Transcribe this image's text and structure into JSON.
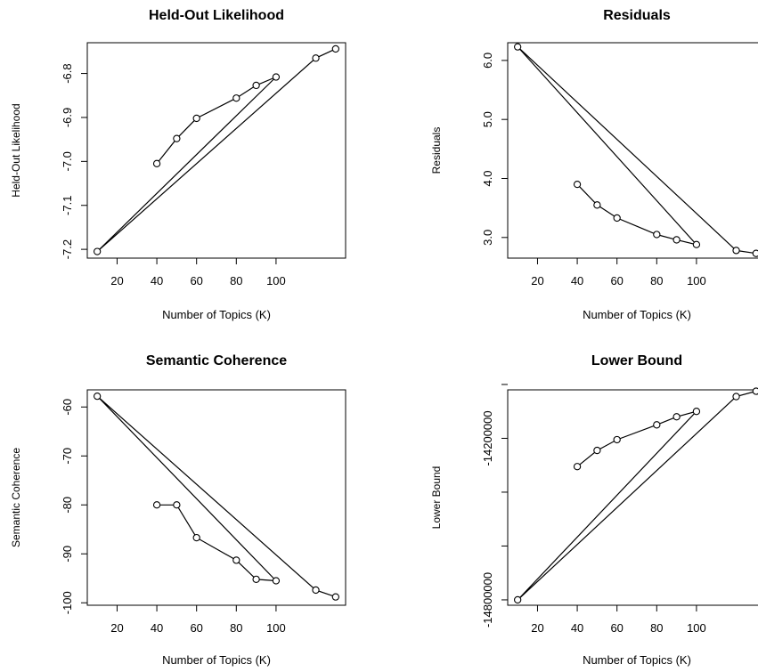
{
  "chart_data": [
    {
      "type": "line",
      "title": "Held-Out Likelihood",
      "xlabel": "Number of Topics (K)",
      "ylabel": "Held-Out Likelihood",
      "x": [
        40,
        50,
        60,
        80,
        90,
        100,
        10,
        120,
        130
      ],
      "y": [
        -7.005,
        -6.948,
        -6.902,
        -6.856,
        -6.827,
        -6.808,
        -7.205,
        -6.765,
        -6.744
      ],
      "xlim": [
        5,
        135
      ],
      "ylim": [
        -7.22,
        -6.73
      ],
      "xticks": [
        20,
        40,
        60,
        80,
        100
      ],
      "xtick_labels": [
        "20",
        "40",
        "60",
        "80",
        "100"
      ],
      "yticks": [
        -7.2,
        -7.1,
        -7.0,
        -6.9,
        -6.8
      ],
      "ytick_labels": [
        "-7.2",
        "-7.1",
        "-7.0",
        "-6.9",
        "-6.8"
      ]
    },
    {
      "type": "line",
      "title": "Residuals",
      "xlabel": "Number of Topics (K)",
      "ylabel": "Residuals",
      "x": [
        40,
        50,
        60,
        80,
        90,
        100,
        10,
        120,
        130
      ],
      "y": [
        3.9,
        3.55,
        3.33,
        3.05,
        2.96,
        2.88,
        6.23,
        2.78,
        2.73
      ],
      "xlim": [
        5,
        135
      ],
      "ylim": [
        2.65,
        6.3
      ],
      "xticks": [
        20,
        40,
        60,
        80,
        100
      ],
      "xtick_labels": [
        "20",
        "40",
        "60",
        "80",
        "100"
      ],
      "yticks": [
        3.0,
        4.0,
        5.0,
        6.0
      ],
      "ytick_labels": [
        "3.0",
        "4.0",
        "5.0",
        "6.0"
      ]
    },
    {
      "type": "line",
      "title": "Semantic Coherence",
      "xlabel": "Number of Topics (K)",
      "ylabel": "Semantic Coherence",
      "x": [
        40,
        50,
        60,
        80,
        90,
        100,
        10,
        120,
        130
      ],
      "y": [
        -80,
        -80,
        -86.7,
        -91.3,
        -95.2,
        -95.5,
        -57.8,
        -97.4,
        -98.8
      ],
      "xlim": [
        5,
        135
      ],
      "ylim": [
        -100.5,
        -56.5
      ],
      "xticks": [
        20,
        40,
        60,
        80,
        100
      ],
      "xtick_labels": [
        "20",
        "40",
        "60",
        "80",
        "100"
      ],
      "yticks": [
        -100,
        -90,
        -80,
        -70,
        -60
      ],
      "ytick_labels": [
        "-100",
        "-90",
        "-80",
        "-70",
        "-60"
      ]
    },
    {
      "type": "line",
      "title": "Lower Bound",
      "xlabel": "Number of Topics (K)",
      "ylabel": "Lower Bound",
      "x": [
        40,
        50,
        60,
        80,
        90,
        100,
        10,
        120,
        130
      ],
      "y": [
        -14305000,
        -14245000,
        -14205000,
        -14150000,
        -14120000,
        -14100000,
        -14800000,
        -14045000,
        -14025000
      ],
      "xlim": [
        5,
        135
      ],
      "ylim": [
        -14820000,
        -14020000
      ],
      "xticks": [
        20,
        40,
        60,
        80,
        100
      ],
      "xtick_labels": [
        "20",
        "40",
        "60",
        "80",
        "100"
      ],
      "yticks": [
        -14800000,
        -14600000,
        -14400000,
        -14200000,
        -14000000
      ],
      "ytick_labels": [
        "-14800000",
        "",
        "",
        "-14200000",
        ""
      ]
    }
  ]
}
